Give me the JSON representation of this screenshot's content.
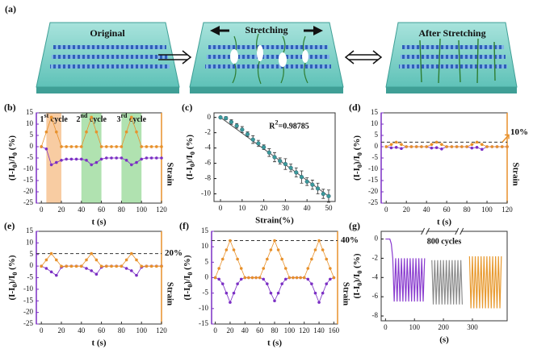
{
  "schematic": {
    "label": "(a)",
    "steps": [
      "Original",
      "Stretching",
      "After Stretching"
    ]
  },
  "chart_data": [
    {
      "type": "line",
      "panel": "(b)",
      "xlabel": "t (s)",
      "ylabel": [
        {
          "text": "(I-I"
        },
        {
          "text": "0",
          "sub": true
        },
        {
          "text": ")/I"
        },
        {
          "text": "0",
          "sub": true
        },
        {
          "text": " (%)"
        }
      ],
      "y2label": "Strain",
      "xlim": [
        -5,
        120
      ],
      "xticks": [
        0,
        20,
        40,
        60,
        80,
        100,
        120
      ],
      "ylim": [
        -25,
        15
      ],
      "yticks": [
        15,
        10,
        5,
        0,
        -5,
        -10,
        -15,
        -20,
        -25
      ],
      "y2lim": [
        -19.2,
        11.5
      ],
      "shaded": [
        {
          "x": [
            5,
            20
          ],
          "color": "#f5b77a",
          "label": [
            {
              "text": "1"
            },
            {
              "text": "st",
              "sup": true
            },
            {
              "text": " cycle"
            }
          ]
        },
        {
          "x": [
            40,
            60
          ],
          "color": "#8fd68f",
          "label": [
            {
              "text": "2"
            },
            {
              "text": "nd",
              "sup": true
            },
            {
              "text": " cycle"
            }
          ]
        },
        {
          "x": [
            80,
            100
          ],
          "color": "#8fd68f",
          "label": [
            {
              "text": "3"
            },
            {
              "text": "rd",
              "sup": true
            },
            {
              "text": " cycle"
            }
          ]
        }
      ],
      "x": [
        0,
        5,
        10,
        15,
        20,
        25,
        30,
        35,
        40,
        45,
        50,
        55,
        60,
        65,
        70,
        75,
        80,
        85,
        90,
        95,
        100,
        105,
        110,
        115,
        120
      ],
      "series": [
        {
          "color": "#7b2fc4",
          "values": [
            0,
            -1,
            -8,
            -7,
            -6,
            -5.5,
            -5.5,
            -5.5,
            -5.5,
            -6,
            -8,
            -7,
            -5.5,
            -5,
            -5,
            -5,
            -5,
            -6,
            -8,
            -7,
            -5.5,
            -5,
            -5,
            -5,
            -5
          ]
        },
        {
          "color": "#e8912b",
          "axis": "y2",
          "values": [
            0,
            5,
            10,
            5,
            0,
            0,
            0,
            0,
            0,
            5,
            10,
            5,
            0,
            0,
            0,
            0,
            0,
            5,
            10,
            5,
            0,
            0,
            0,
            0,
            0
          ]
        }
      ]
    },
    {
      "type": "scatter",
      "panel": "(c)",
      "xlabel": "Strain(%)",
      "ylabel": [
        {
          "text": "(I-I"
        },
        {
          "text": "0",
          "sub": true
        },
        {
          "text": ")/I"
        },
        {
          "text": "0",
          "sub": true
        },
        {
          "text": " (%)"
        }
      ],
      "note": [
        {
          "text": "R"
        },
        {
          "text": "2",
          "sup": true
        },
        {
          "text": "=0.98785"
        }
      ],
      "xlim": [
        -3,
        53
      ],
      "xticks": [
        0,
        10,
        20,
        30,
        40,
        50
      ],
      "ylim": [
        -11,
        0.6
      ],
      "yticks": [
        0,
        -2,
        -4,
        -6,
        -8,
        -10
      ],
      "color": "#3b9a9c",
      "x": [
        0,
        2.5,
        5,
        7.5,
        10,
        12.5,
        15,
        17.5,
        20,
        22.5,
        25,
        27.5,
        30,
        32.5,
        35,
        37.5,
        40,
        42.5,
        45,
        47.5,
        50
      ],
      "values": [
        0,
        -0.1,
        -0.6,
        -1.1,
        -1.6,
        -2.2,
        -2.9,
        -3.4,
        -3.9,
        -4.6,
        -5.2,
        -5.7,
        -6.1,
        -6.6,
        -7.2,
        -7.8,
        -8.4,
        -8.8,
        -9.3,
        -10.0,
        -10.3
      ],
      "errors": [
        0.1,
        0.2,
        0.3,
        0.3,
        0.4,
        0.3,
        0.5,
        0.4,
        0.3,
        0.5,
        0.6,
        0.4,
        0.7,
        0.5,
        0.6,
        0.8,
        0.5,
        0.6,
        0.7,
        0.6,
        0.8
      ],
      "fit": {
        "x": [
          0,
          50
        ],
        "y": [
          0,
          -10.3
        ]
      }
    },
    {
      "type": "line",
      "panel": "(d)",
      "xlabel": "t (s)",
      "ylabel": [
        {
          "text": "(I-I"
        },
        {
          "text": "0",
          "sub": true
        },
        {
          "text": ")/I"
        },
        {
          "text": "0",
          "sub": true
        },
        {
          "text": " (%)"
        }
      ],
      "y2label": "Strain",
      "xlim": [
        -5,
        120
      ],
      "xticks": [
        0,
        20,
        40,
        60,
        80,
        100,
        120
      ],
      "ylim": [
        -25,
        15
      ],
      "yticks": [
        15,
        10,
        5,
        0,
        -5,
        -10,
        -15,
        -20,
        -25
      ],
      "y2lim": [
        -125,
        75
      ],
      "strain_level": {
        "value": 10,
        "label": "10%"
      },
      "x": [
        0,
        5,
        10,
        15,
        20,
        25,
        30,
        35,
        40,
        45,
        50,
        55,
        60,
        65,
        70,
        75,
        80,
        85,
        90,
        95,
        100,
        105,
        110,
        115,
        120
      ],
      "series": [
        {
          "color": "#7b2fc4",
          "values": [
            0,
            -0.5,
            -0.3,
            -0.8,
            0,
            0,
            0,
            0,
            0,
            -0.6,
            -0.4,
            -1,
            0,
            0,
            0,
            0,
            0,
            -0.6,
            -0.3,
            -1.2,
            0,
            0,
            0,
            0,
            0
          ]
        },
        {
          "color": "#e8912b",
          "axis": "y2",
          "values": [
            0,
            5,
            10,
            5,
            0,
            0,
            0,
            0,
            0,
            5,
            10,
            5,
            0,
            0,
            0,
            0,
            0,
            5,
            10,
            5,
            0,
            0,
            0,
            0,
            0
          ]
        }
      ]
    },
    {
      "type": "line",
      "panel": "(e)",
      "xlabel": "t (s)",
      "ylabel": [
        {
          "text": "(I-I"
        },
        {
          "text": "0",
          "sub": true
        },
        {
          "text": ")/I"
        },
        {
          "text": "0",
          "sub": true
        },
        {
          "text": " (%)"
        }
      ],
      "y2label": "Strain",
      "xlim": [
        -5,
        120
      ],
      "xticks": [
        0,
        20,
        40,
        60,
        80,
        100,
        120
      ],
      "ylim": [
        -25,
        15
      ],
      "yticks": [
        15,
        10,
        5,
        0,
        -5,
        -10,
        -15,
        -20,
        -25
      ],
      "y2lim": [
        -91,
        55
      ],
      "strain_level": {
        "value": 20,
        "label": "20%"
      },
      "x": [
        0,
        5,
        10,
        15,
        20,
        25,
        30,
        35,
        40,
        45,
        50,
        55,
        60,
        65,
        70,
        75,
        80,
        85,
        90,
        95,
        100,
        105,
        110,
        115,
        120
      ],
      "series": [
        {
          "color": "#7b2fc4",
          "values": [
            0,
            -1,
            -2.5,
            -4,
            -0.5,
            0,
            0,
            0,
            0,
            -1,
            -2,
            -3.5,
            -0.5,
            0,
            0,
            0,
            0,
            -1,
            -2,
            -4,
            -0.5,
            0,
            0,
            0,
            0
          ]
        },
        {
          "color": "#e8912b",
          "axis": "y2",
          "values": [
            0,
            10,
            20,
            10,
            0,
            0,
            0,
            0,
            0,
            10,
            20,
            10,
            0,
            0,
            0,
            0,
            0,
            10,
            20,
            10,
            0,
            0,
            0,
            0,
            0
          ]
        }
      ]
    },
    {
      "type": "line",
      "panel": "(f)",
      "xlabel": "t (s)",
      "ylabel": [
        {
          "text": "(I-I"
        },
        {
          "text": "0",
          "sub": true
        },
        {
          "text": ")/I"
        },
        {
          "text": "0",
          "sub": true
        },
        {
          "text": " (%)"
        }
      ],
      "y2label": "Strain",
      "xlim": [
        -5,
        165
      ],
      "xticks": [
        0,
        20,
        40,
        60,
        80,
        100,
        120,
        140,
        160
      ],
      "ylim": [
        -15,
        15
      ],
      "yticks": [
        15,
        10,
        5,
        0,
        -5,
        -10,
        -15
      ],
      "y2lim": [
        -50,
        50
      ],
      "strain_level": {
        "value": 40,
        "label": "40%"
      },
      "x": [
        0,
        5,
        10,
        15,
        20,
        25,
        30,
        35,
        40,
        45,
        50,
        55,
        60,
        65,
        70,
        75,
        80,
        85,
        90,
        95,
        100,
        105,
        110,
        115,
        120,
        125,
        130,
        135,
        140,
        145,
        150,
        155,
        160
      ],
      "series": [
        {
          "color": "#7b2fc4",
          "values": [
            0,
            -0.5,
            -2,
            -5,
            -8,
            -5,
            -2,
            -0.5,
            0,
            0,
            0,
            0,
            0,
            -0.5,
            -2,
            -5,
            -7.5,
            -5,
            -2,
            -0.5,
            0,
            0,
            0,
            0,
            0,
            -0.5,
            -2,
            -5,
            -8,
            -5,
            -2,
            -0.5,
            0
          ]
        },
        {
          "color": "#e8912b",
          "axis": "y2",
          "values": [
            0,
            10,
            20,
            30,
            40,
            30,
            20,
            10,
            0,
            0,
            0,
            0,
            0,
            10,
            20,
            30,
            40,
            30,
            20,
            10,
            0,
            0,
            0,
            0,
            0,
            10,
            20,
            30,
            40,
            30,
            20,
            10,
            0
          ]
        }
      ]
    },
    {
      "type": "line",
      "panel": "(g)",
      "xlabel": "(s)",
      "markers": false,
      "ylabel": [
        {
          "text": "(I-I"
        },
        {
          "text": "0",
          "sub": true
        },
        {
          "text": ")/I"
        },
        {
          "text": "0",
          "sub": true
        },
        {
          "text": " (%)"
        }
      ],
      "note": [
        {
          "text": "800 cycles"
        }
      ],
      "xlim": [
        -15,
        420
      ],
      "xticks": [
        0,
        100,
        200,
        300
      ],
      "ylim": [
        -8.5,
        0.8
      ],
      "yticks": [
        0,
        -2,
        -4,
        -6,
        -8
      ],
      "series": [
        {
          "color": "#8a3ccf",
          "x": [
            0,
            5,
            10,
            15,
            20,
            25,
            30,
            35,
            40,
            45,
            50,
            55,
            60,
            65,
            70,
            75,
            80,
            85,
            90,
            95,
            100,
            105,
            110,
            115,
            120,
            125,
            130,
            135
          ],
          "values": [
            0,
            0,
            0,
            0,
            -0.5,
            -2,
            -6.5,
            -2,
            -6.5,
            -2,
            -6.5,
            -2,
            -6.5,
            -2,
            -6.5,
            -2,
            -6.5,
            -2,
            -6.5,
            -2,
            -6.5,
            -2,
            -6.5,
            -2,
            -6.5,
            -2,
            -6.5,
            -2
          ]
        },
        {
          "color": "#8c8c8c",
          "x": [
            160,
            165,
            170,
            175,
            180,
            185,
            190,
            195,
            200,
            205,
            210,
            215,
            220,
            225,
            230,
            235,
            240,
            245,
            250,
            255,
            260,
            265
          ],
          "values": [
            -2.2,
            -6.8,
            -2.2,
            -6.8,
            -2.2,
            -6.8,
            -2.2,
            -6.8,
            -2.2,
            -6.8,
            -2.2,
            -6.8,
            -2.2,
            -6.8,
            -2.2,
            -6.8,
            -2.2,
            -6.8,
            -2.2,
            -6.8,
            -2.2,
            -6.8
          ]
        },
        {
          "color": "#e89a30",
          "x": [
            290,
            295,
            300,
            305,
            310,
            315,
            320,
            325,
            330,
            335,
            340,
            345,
            350,
            355,
            360,
            365,
            370,
            375,
            380,
            385,
            390,
            395,
            400
          ],
          "values": [
            -1.8,
            -7.2,
            -1.8,
            -7.2,
            -1.8,
            -7.2,
            -1.8,
            -7.2,
            -1.8,
            -7.2,
            -1.8,
            -7.2,
            -1.8,
            -7.2,
            -1.8,
            -7.2,
            -1.8,
            -7.2,
            -1.8,
            -7.2,
            -1.8,
            -7.2,
            -1.8
          ]
        }
      ]
    }
  ]
}
